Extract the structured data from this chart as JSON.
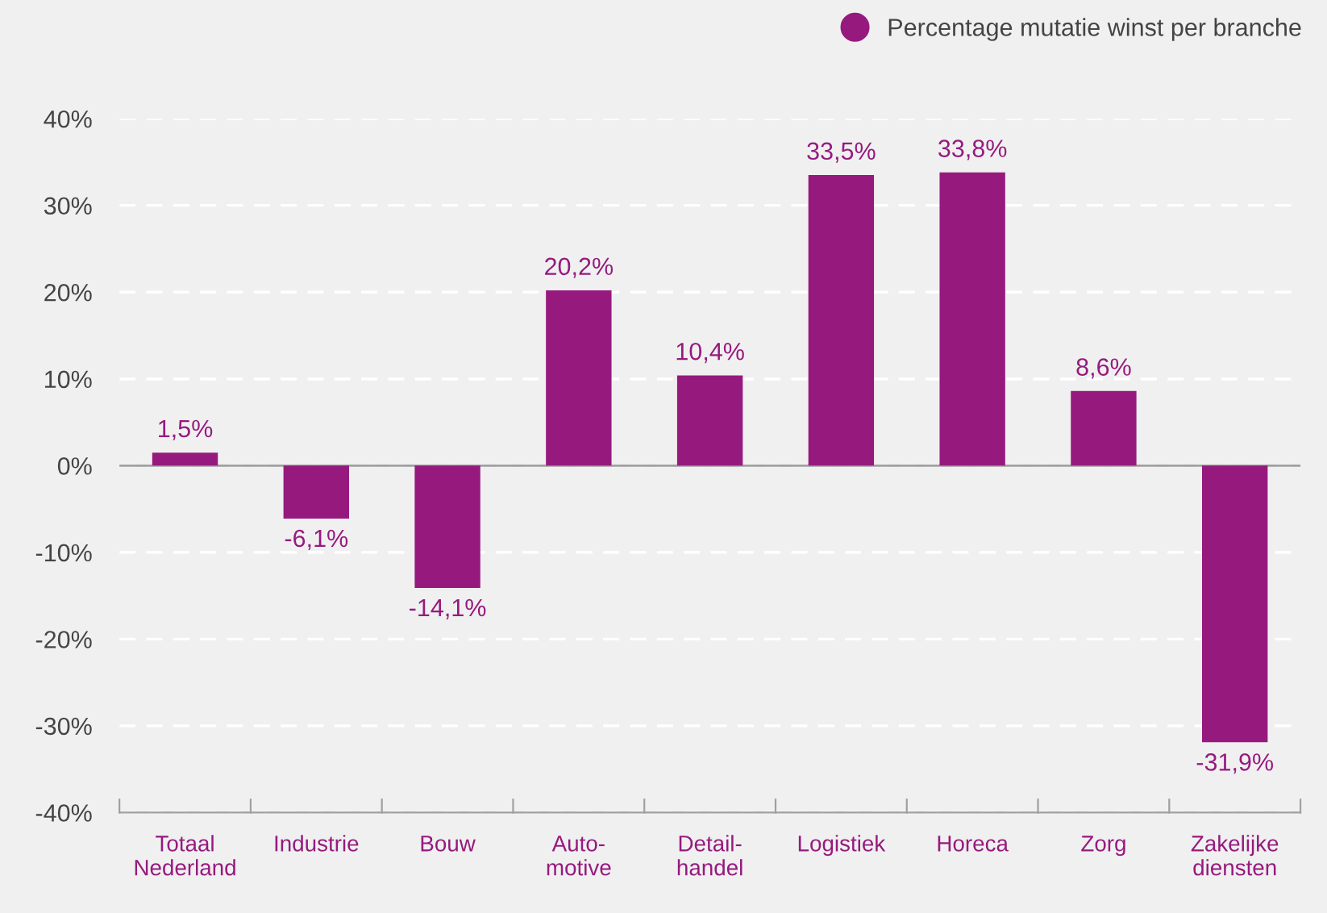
{
  "chart_data": {
    "type": "bar",
    "categories": [
      "Totaal\nNederland",
      "Industrie",
      "Bouw",
      "Auto-\nmotive",
      "Detail-\nhandel",
      "Logistiek",
      "Horeca",
      "Zorg",
      "Zakelijke\ndiensten"
    ],
    "series": [
      {
        "name": "Percentage mutatie winst per branche",
        "color": "#961a7e",
        "values": [
          1.5,
          -6.1,
          -14.1,
          20.2,
          10.4,
          33.5,
          33.8,
          8.6,
          -31.9
        ],
        "value_labels": [
          "1,5%",
          "-6,1%",
          "-14,1%",
          "20,2%",
          "10,4%",
          "33,5%",
          "33,8%",
          "8,6%",
          "-31,9%"
        ]
      }
    ],
    "ylim": [
      -40,
      40
    ],
    "yticks": [
      {
        "value": -40,
        "label": "-40%"
      },
      {
        "value": -30,
        "label": "-30%"
      },
      {
        "value": -20,
        "label": "-20%"
      },
      {
        "value": -10,
        "label": "-10%"
      },
      {
        "value": 0,
        "label": "0%"
      },
      {
        "value": 10,
        "label": "10%"
      },
      {
        "value": 20,
        "label": "20%"
      },
      {
        "value": 30,
        "label": "30%"
      },
      {
        "value": 40,
        "label": "40%"
      }
    ],
    "ref_lines": [
      {
        "axis": "y",
        "value": 0,
        "color": "#a0a0a0",
        "line_style": "solid"
      }
    ],
    "grid": "y",
    "legend": "top right",
    "marker": "circle"
  }
}
